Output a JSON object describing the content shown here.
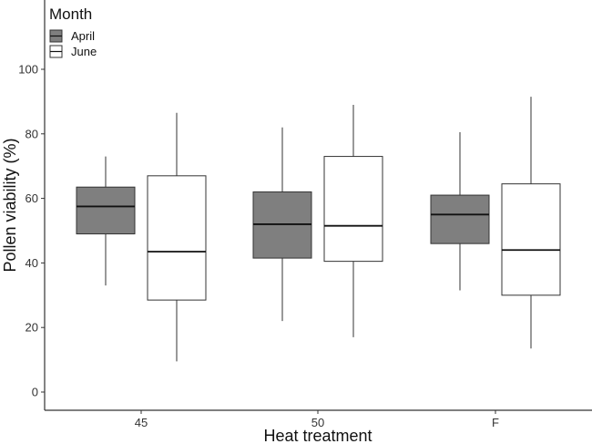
{
  "chart_data": {
    "type": "boxplot",
    "title": "",
    "xlabel": "Heat treatment",
    "ylabel": "Pollen viability (%)",
    "categories": [
      "45",
      "50",
      "F"
    ],
    "yticks": [
      "0",
      "20",
      "40",
      "60",
      "80",
      "100"
    ],
    "ylim": [
      -3,
      107
    ],
    "grid": false,
    "legend": {
      "title": "Month",
      "placement": "top-left",
      "entries": [
        "April",
        "June"
      ]
    },
    "series": [
      {
        "name": "April",
        "color": "#7f7f7f",
        "boxes": [
          {
            "category": "45",
            "min": 33,
            "q1": 49,
            "median": 57.5,
            "q3": 63.5,
            "max": 73
          },
          {
            "category": "50",
            "min": 22,
            "q1": 41.5,
            "median": 52,
            "q3": 62,
            "max": 82
          },
          {
            "category": "F",
            "min": 31.5,
            "q1": 46,
            "median": 55,
            "q3": 61,
            "max": 80.5
          }
        ]
      },
      {
        "name": "June",
        "color": "#ffffff",
        "boxes": [
          {
            "category": "45",
            "min": 9.5,
            "q1": 28.5,
            "median": 43.5,
            "q3": 67,
            "max": 86.5
          },
          {
            "category": "50",
            "min": 17,
            "q1": 40.5,
            "median": 51.5,
            "q3": 73,
            "max": 89
          },
          {
            "category": "F",
            "min": 13.5,
            "q1": 30,
            "median": 44,
            "q3": 64.5,
            "max": 91.5
          }
        ]
      }
    ]
  }
}
